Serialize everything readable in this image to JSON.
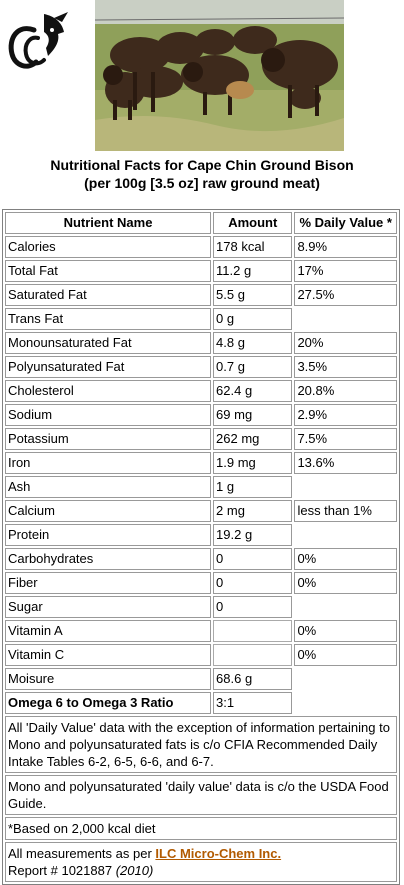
{
  "title": {
    "line1": "Nutritional Facts for Cape Chin Ground Bison",
    "line2": "(per 100g [3.5 oz] raw ground meat)"
  },
  "logo": {
    "text": "CC",
    "icon": "bison-head-logo-icon"
  },
  "photo": {
    "subject": "bison-herd-photo"
  },
  "table": {
    "headers": [
      "Nutrient Name",
      "Amount",
      "% Daily Value *"
    ],
    "rows": [
      {
        "name": "Calories",
        "amount": "178 kcal",
        "dv": "8.9%"
      },
      {
        "name": "Total Fat",
        "amount": "11.2 g",
        "dv": "17%"
      },
      {
        "name": "Saturated Fat",
        "amount": "5.5 g",
        "dv": "27.5%"
      },
      {
        "name": "Trans Fat",
        "amount": "0 g",
        "dv": ""
      },
      {
        "name": "Monounsaturated Fat",
        "amount": "4.8 g",
        "dv": "20%"
      },
      {
        "name": "Polyunsaturated Fat",
        "amount": "0.7 g",
        "dv": "3.5%"
      },
      {
        "name": "Cholesterol",
        "amount": "62.4 g",
        "dv": "20.8%"
      },
      {
        "name": "Sodium",
        "amount": "69 mg",
        "dv": "2.9%"
      },
      {
        "name": "Potassium",
        "amount": "262 mg",
        "dv": "7.5%"
      },
      {
        "name": "Iron",
        "amount": "1.9 mg",
        "dv": "13.6%"
      },
      {
        "name": "Ash",
        "amount": "1 g",
        "dv": ""
      },
      {
        "name": "Calcium",
        "amount": "2 mg",
        "dv": "less than 1%"
      },
      {
        "name": "Protein",
        "amount": "19.2 g",
        "dv": ""
      },
      {
        "name": "Carbohydrates",
        "amount": "0",
        "dv": "0%"
      },
      {
        "name": "Fiber",
        "amount": "0",
        "dv": "0%"
      },
      {
        "name": "Sugar",
        "amount": "0",
        "dv": ""
      },
      {
        "name": "Vitamin A",
        "amount": "",
        "dv": "0%"
      },
      {
        "name": "Vitamin C",
        "amount": "",
        "dv": "0%"
      },
      {
        "name": "Moisure",
        "amount": "68.6 g",
        "dv": ""
      },
      {
        "name": "Omega 6 to Omega 3 Ratio",
        "amount": "3:1",
        "dv": "",
        "bold": true
      }
    ],
    "notes": {
      "cfia": "All 'Daily Value' data with the exception of information pertaining to Mono and polyunsaturated fats is c/o CFIA Recommended Daily Intake Tables 6-2, 6-5, 6-6, and 6-7.",
      "usda": "Mono and polyunsaturated 'daily value' data is c/o the USDA Food Guide.",
      "kcal": "*Based on 2,000 kcal diet",
      "measure_prefix": "All measurements as per",
      "lab_link": "ILC Micro-Chem Inc.",
      "report": "Report # 1021887",
      "year": "(2010)"
    }
  },
  "colors": {
    "link": "#b25a00",
    "border": "#999999"
  }
}
